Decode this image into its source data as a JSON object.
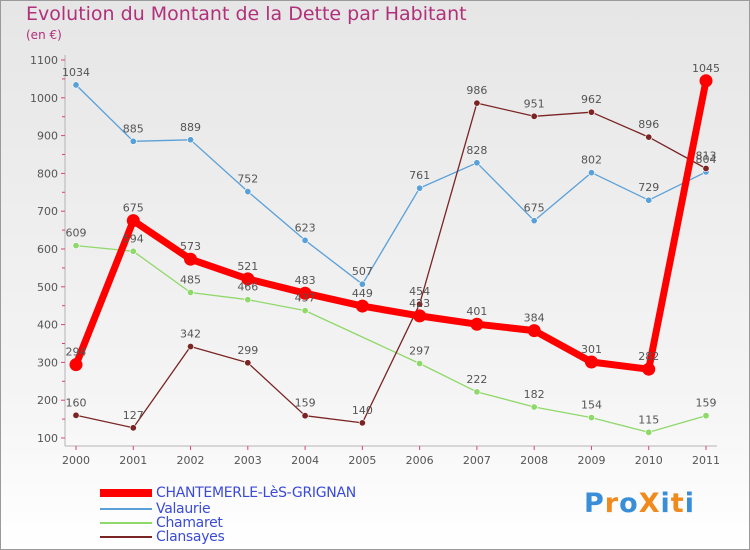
{
  "header": {
    "title": "Evolution du Montant de la Dette par Habitant",
    "unit": "(en €)"
  },
  "chart_data": {
    "type": "line",
    "title": "Evolution du Montant de la Dette par Habitant",
    "ylabel": "(en €)",
    "xlabel": "",
    "ylim": [
      100,
      1100
    ],
    "yticks": [
      "100",
      "200",
      "300",
      "400",
      "500",
      "600",
      "700",
      "800",
      "900",
      "1000",
      "1100"
    ],
    "categories": [
      "2000",
      "2001",
      "2002",
      "2003",
      "2004",
      "2005",
      "2006",
      "2007",
      "2008",
      "2009",
      "2010",
      "2011"
    ],
    "grid": false,
    "series": [
      {
        "name": "Valaurie",
        "color": "#5aa0d8",
        "values": [
          1034,
          885,
          889,
          752,
          623,
          507,
          761,
          828,
          675,
          802,
          729,
          804
        ],
        "labels": [
          "1034",
          "885",
          "889",
          "752",
          "623",
          "507",
          "761",
          "828",
          "675",
          "802",
          "729",
          "804"
        ]
      },
      {
        "name": "Chamaret",
        "color": "#8fd86a",
        "values": [
          609,
          594,
          485,
          466,
          437,
          null,
          297,
          222,
          182,
          154,
          115,
          159
        ],
        "labels": [
          "609",
          "594",
          "485",
          "466",
          "437",
          "",
          "297",
          "222",
          "182",
          "154",
          "115",
          "159"
        ]
      },
      {
        "name": "Clansayes",
        "color": "#7a2424",
        "values": [
          160,
          127,
          342,
          299,
          159,
          140,
          454,
          986,
          951,
          962,
          896,
          813
        ],
        "labels": [
          "160",
          "127",
          "342",
          "299",
          "159",
          "140",
          "454",
          "986",
          "951",
          "962",
          "896",
          "813"
        ]
      },
      {
        "name": "CHANTEMERLE-LèS-GRIGNAN",
        "color": "#ff0000",
        "values": [
          294,
          675,
          573,
          521,
          483,
          449,
          423,
          401,
          384,
          301,
          282,
          1045
        ],
        "labels": [
          "294",
          "675",
          "573",
          "521",
          "483",
          "449",
          "423",
          "401",
          "384",
          "301",
          "282",
          "1045"
        ]
      }
    ]
  },
  "legend": [
    {
      "name": "CHANTEMERLE-LèS-GRIGNAN",
      "color": "#ff0000",
      "thick": true
    },
    {
      "name": "Valaurie",
      "color": "#5aa0d8",
      "thick": false
    },
    {
      "name": "Chamaret",
      "color": "#8fd86a",
      "thick": false
    },
    {
      "name": "Clansayes",
      "color": "#7a2424",
      "thick": false
    }
  ],
  "logo": {
    "text": "ProXiti",
    "letters": [
      "P",
      "r",
      "o",
      "X",
      "i",
      "t",
      "i"
    ],
    "colors": [
      "#3a8ed8",
      "#f08a1c",
      "#3a8ed8",
      "#f08a1c",
      "#3a8ed8",
      "#f08a1c",
      "#3a8ed8"
    ]
  }
}
